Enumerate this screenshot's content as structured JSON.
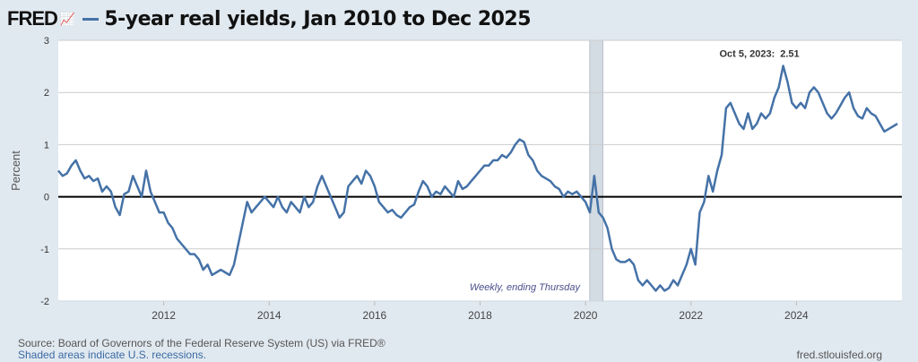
{
  "header": {
    "logo": "FRED",
    "title": "5-year real yields, Jan 2010 to Dec 2025"
  },
  "footer": {
    "source": "Source: Board of Governors of the Federal Reserve System (US) via FRED®",
    "recession_note": "Shaded areas indicate U.S. recessions.",
    "site": "fred.stlouisfed.org"
  },
  "chart_data": {
    "type": "line",
    "title": "5-year real yields, Jan 2010 to Dec 2025",
    "ylabel": "Percent",
    "xlabel": "",
    "ylim": [
      -2,
      3
    ],
    "xlim": [
      2010,
      2026
    ],
    "yticks": [
      "-2",
      "-1",
      "0",
      "1",
      "2",
      "3"
    ],
    "xticks": [
      "2012",
      "2014",
      "2016",
      "2018",
      "2020",
      "2022",
      "2024"
    ],
    "frequency_note": "Weekly, ending Thursday",
    "annotation": {
      "label": "Oct 5, 2023:",
      "value": "2.51",
      "x": 2023.76,
      "y": 2.51
    },
    "recessions": [
      [
        2020.08,
        2020.33
      ]
    ],
    "series": [
      {
        "name": "5-year real yields",
        "color": "#4572a7",
        "start": 2010.0,
        "step": 0.08333,
        "values": [
          0.5,
          0.4,
          0.45,
          0.6,
          0.7,
          0.5,
          0.35,
          0.4,
          0.3,
          0.35,
          0.1,
          0.2,
          0.1,
          -0.2,
          -0.35,
          0.05,
          0.1,
          0.4,
          0.2,
          0.0,
          0.5,
          0.1,
          -0.1,
          -0.3,
          -0.3,
          -0.5,
          -0.6,
          -0.8,
          -0.9,
          -1.0,
          -1.1,
          -1.1,
          -1.2,
          -1.4,
          -1.3,
          -1.5,
          -1.45,
          -1.4,
          -1.45,
          -1.5,
          -1.3,
          -0.9,
          -0.5,
          -0.1,
          -0.3,
          -0.2,
          -0.1,
          0.0,
          -0.1,
          -0.2,
          0.0,
          -0.2,
          -0.3,
          -0.1,
          -0.2,
          -0.3,
          0.0,
          -0.2,
          -0.1,
          0.2,
          0.4,
          0.2,
          0.0,
          -0.2,
          -0.4,
          -0.3,
          0.2,
          0.3,
          0.4,
          0.25,
          0.5,
          0.4,
          0.2,
          -0.1,
          -0.2,
          -0.3,
          -0.25,
          -0.35,
          -0.4,
          -0.3,
          -0.2,
          -0.15,
          0.1,
          0.3,
          0.2,
          0.0,
          0.1,
          0.05,
          0.2,
          0.1,
          0.0,
          0.3,
          0.15,
          0.2,
          0.3,
          0.4,
          0.5,
          0.6,
          0.6,
          0.7,
          0.7,
          0.8,
          0.75,
          0.85,
          1.0,
          1.1,
          1.05,
          0.8,
          0.7,
          0.5,
          0.4,
          0.35,
          0.3,
          0.2,
          0.15,
          0.0,
          0.1,
          0.05,
          0.1,
          0.0,
          -0.1,
          -0.3,
          0.4,
          -0.3,
          -0.4,
          -0.6,
          -1.0,
          -1.2,
          -1.25,
          -1.25,
          -1.2,
          -1.3,
          -1.6,
          -1.7,
          -1.6,
          -1.7,
          -1.8,
          -1.7,
          -1.8,
          -1.75,
          -1.6,
          -1.7,
          -1.5,
          -1.3,
          -1.0,
          -1.3,
          -0.3,
          -0.1,
          0.4,
          0.1,
          0.5,
          0.8,
          1.7,
          1.8,
          1.6,
          1.4,
          1.3,
          1.6,
          1.3,
          1.4,
          1.6,
          1.5,
          1.6,
          1.9,
          2.1,
          2.51,
          2.2,
          1.8,
          1.7,
          1.8,
          1.7,
          2.0,
          2.1,
          2.0,
          1.8,
          1.6,
          1.5,
          1.6,
          1.75,
          1.9,
          2.0,
          1.7,
          1.55,
          1.5,
          1.7,
          1.6,
          1.55,
          1.4,
          1.25,
          1.3,
          1.35,
          1.4
        ]
      }
    ]
  }
}
